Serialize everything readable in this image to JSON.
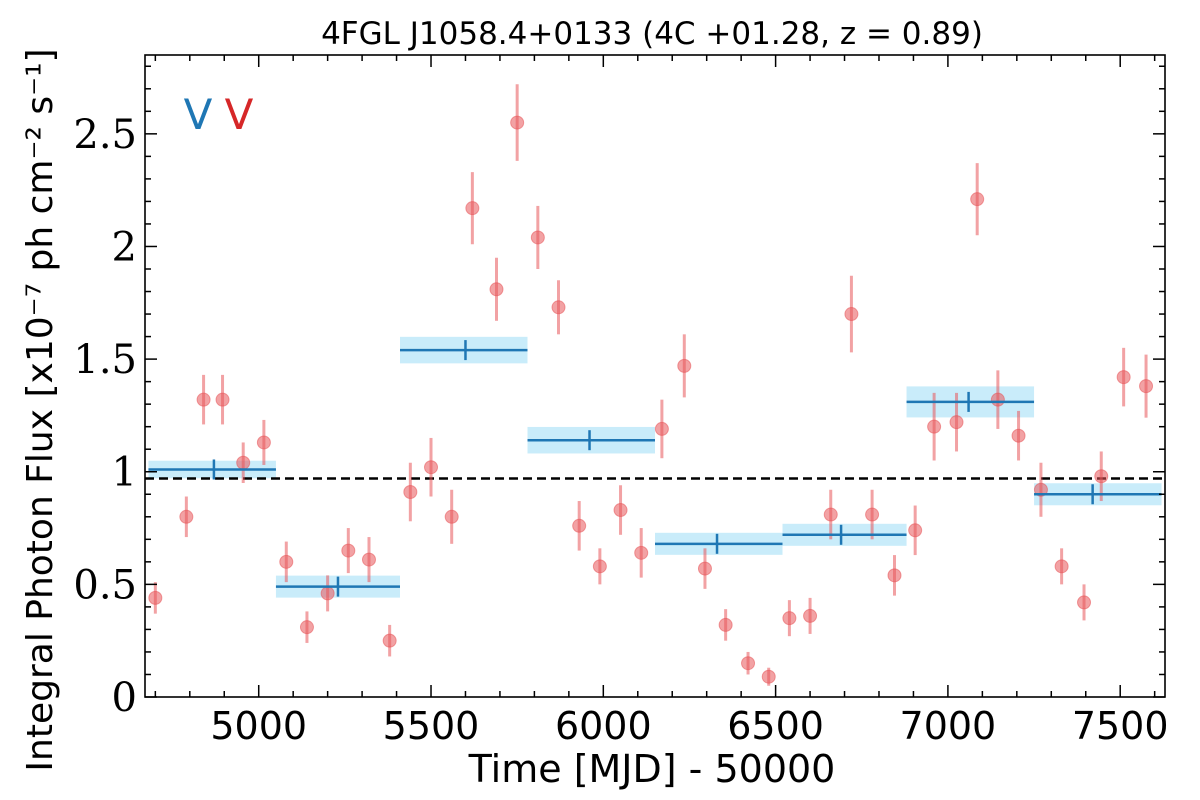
{
  "chart_data": {
    "type": "scatter",
    "title": "4FGL J1058.4+0133 (4C +01.28, z = 0.89)",
    "xlabel": "Time [MJD] - 50000",
    "ylabel": "Integral Photon Flux [x10⁻⁷ ph cm⁻² s⁻¹]",
    "xlim": [
      4670,
      7630
    ],
    "ylim": [
      0,
      2.85
    ],
    "xticks": [
      5000,
      5500,
      6000,
      6500,
      7000,
      7500
    ],
    "yticks": [
      0,
      0.5,
      1,
      1.5,
      2,
      2.5
    ],
    "ytick_labels": [
      "0",
      "0.5",
      "1",
      "1.5",
      "2",
      "2.5"
    ],
    "grid": false,
    "reference_line": {
      "y": 0.97,
      "style": "dashed",
      "color": "#000000"
    },
    "annotations": [
      {
        "text": "V",
        "color": "#1f77b4"
      },
      {
        "text": "V",
        "color": "#d62728"
      }
    ],
    "series": [
      {
        "marker": "circle",
        "color": "#e8555a",
        "x": [
          4700,
          4790,
          4840,
          4895,
          4955,
          5015,
          5080,
          5140,
          5200,
          5260,
          5320,
          5380,
          5440,
          5500,
          5560,
          5620,
          5690,
          5750,
          5810,
          5870,
          5930,
          5990,
          6050,
          6110,
          6170,
          6235,
          6295,
          6355,
          6420,
          6480,
          6540,
          6600,
          6660,
          6720,
          6780,
          6845,
          6905,
          6960,
          7025,
          7085,
          7145,
          7205,
          7270,
          7330,
          7395,
          7445,
          7510,
          7575
        ],
        "y": [
          0.44,
          0.8,
          1.32,
          1.32,
          1.04,
          1.13,
          0.6,
          0.31,
          0.46,
          0.65,
          0.61,
          0.25,
          0.91,
          1.02,
          0.8,
          2.17,
          1.81,
          2.55,
          2.04,
          1.73,
          0.76,
          0.58,
          0.83,
          0.64,
          1.19,
          1.47,
          0.57,
          0.32,
          0.15,
          0.09,
          0.35,
          0.36,
          0.81,
          1.7,
          0.81,
          0.54,
          0.74,
          1.2,
          1.22,
          2.21,
          1.32,
          1.16,
          0.92,
          0.58,
          0.42,
          0.98,
          1.42,
          1.38
        ],
        "err": [
          0.07,
          0.09,
          0.11,
          0.11,
          0.09,
          0.1,
          0.09,
          0.07,
          0.08,
          0.1,
          0.1,
          0.07,
          0.13,
          0.13,
          0.12,
          0.16,
          0.14,
          0.17,
          0.14,
          0.12,
          0.11,
          0.08,
          0.11,
          0.11,
          0.13,
          0.14,
          0.09,
          0.07,
          0.05,
          0.04,
          0.08,
          0.08,
          0.11,
          0.17,
          0.11,
          0.09,
          0.11,
          0.15,
          0.13,
          0.16,
          0.13,
          0.11,
          0.12,
          0.08,
          0.08,
          0.11,
          0.13,
          0.14
        ]
      },
      {
        "type": "binned",
        "color": "#1f77b4",
        "band_color": "#c9ecfa",
        "bins": [
          {
            "x0": 4680,
            "x1": 5050,
            "xc": 4870,
            "y": 1.01,
            "err": 0.03
          },
          {
            "x0": 5050,
            "x1": 5410,
            "xc": 5230,
            "y": 0.49,
            "err": 0.04
          },
          {
            "x0": 5410,
            "x1": 5780,
            "xc": 5600,
            "y": 1.54,
            "err": 0.05
          },
          {
            "x0": 5780,
            "x1": 6150,
            "xc": 5960,
            "y": 1.14,
            "err": 0.05
          },
          {
            "x0": 6150,
            "x1": 6520,
            "xc": 6330,
            "y": 0.68,
            "err": 0.04
          },
          {
            "x0": 6520,
            "x1": 6880,
            "xc": 6690,
            "y": 0.72,
            "err": 0.04
          },
          {
            "x0": 6880,
            "x1": 7250,
            "xc": 7060,
            "y": 1.31,
            "err": 0.06
          },
          {
            "x0": 7250,
            "x1": 7620,
            "xc": 7420,
            "y": 0.9,
            "err": 0.04
          }
        ]
      }
    ]
  }
}
